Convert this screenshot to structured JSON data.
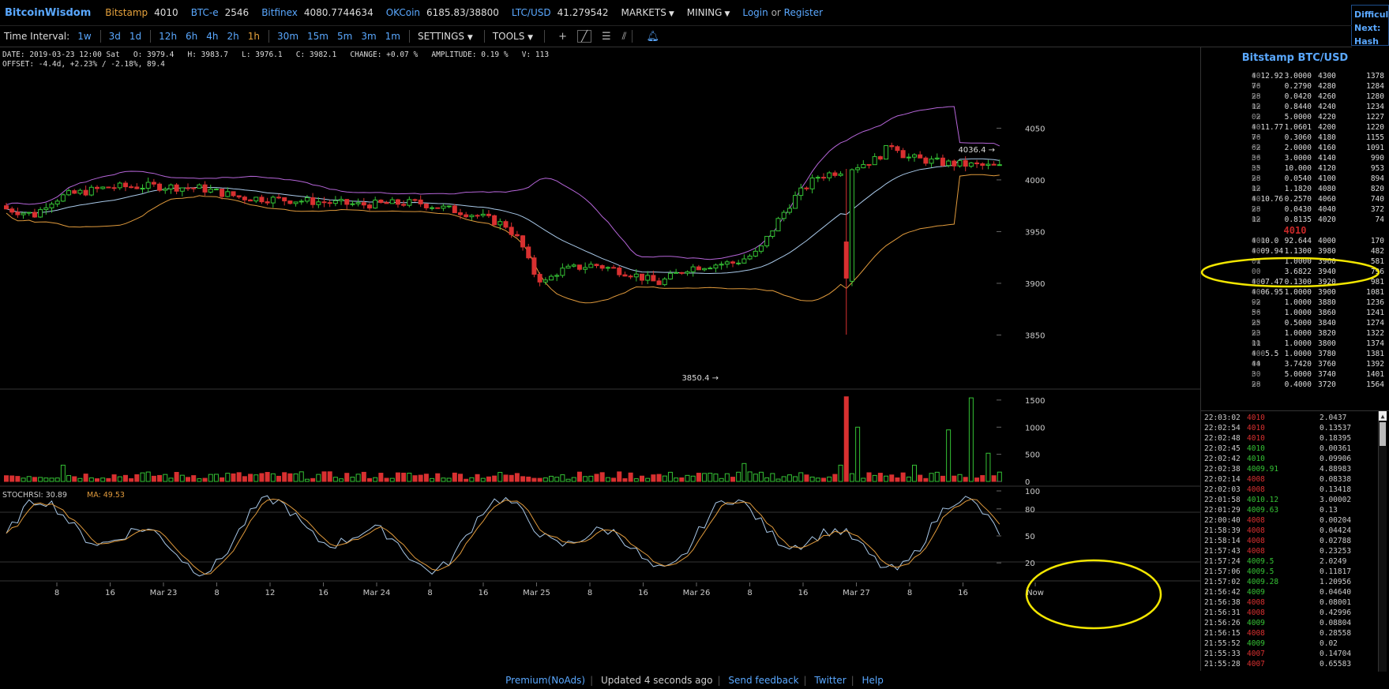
{
  "header": {
    "logo": "BitcoinWisdom",
    "tickers": [
      {
        "name": "Bitstamp",
        "price": "4010"
      },
      {
        "name": "BTC-e",
        "price": "2546"
      },
      {
        "name": "Bitfinex",
        "price": "4080.7744634"
      },
      {
        "name": "OKCoin",
        "price": "6185.83/38800"
      },
      {
        "name": "LTC/USD",
        "price": "41.279542"
      }
    ],
    "markets": "MARKETS",
    "mining": "MINING",
    "login": "Login",
    "or": "or",
    "register": "Register",
    "difficulty": {
      "line1": "Difficul",
      "line2": "Next:",
      "line3": "Hash Ra"
    }
  },
  "toolbar": {
    "time_interval_label": "Time Interval:",
    "intervals": [
      "1w",
      "3d",
      "1d",
      "12h",
      "6h",
      "4h",
      "2h",
      "1h",
      "30m",
      "15m",
      "5m",
      "3m",
      "1m"
    ],
    "selected_interval": "1h",
    "settings": "SETTINGS",
    "tools": "TOOLS"
  },
  "info": {
    "line1": "DATE: 2019-03-23 12:00 Sat   O: 3979.4   H: 3983.7   L: 3976.1   C: 3982.1   CHANGE: +0.07 %   AMPLITUDE: 0.19 %   V: 113",
    "line2": "OFFSET: -4.4d, +2.23% / -2.18%, 89.4"
  },
  "chart_data": {
    "type": "candlestick",
    "price_axis": {
      "ticks": [
        4050,
        4000,
        3950,
        3900,
        3850
      ],
      "range": [
        3800,
        4090
      ]
    },
    "annotations": {
      "high": "4036.4 →",
      "low": "3850.4 →"
    },
    "volume_axis": {
      "ticks": [
        1500,
        1000,
        500,
        0
      ],
      "range": [
        0,
        1600
      ]
    },
    "stochrsi": {
      "label": "STOCHRSI: 30.89",
      "ma_label": "MA: 49.53",
      "ticks": [
        100,
        80,
        50,
        20
      ],
      "range": [
        0,
        100
      ]
    },
    "time_axis": [
      "8",
      "16",
      "Mar 23",
      "8",
      "12",
      "16",
      "Mar 24",
      "8",
      "16",
      "Mar 25",
      "8",
      "16",
      "Mar 26",
      "8",
      "16",
      "Mar 27",
      "8",
      "16",
      "Now"
    ]
  },
  "orderbook": {
    "title": "Bitstamp BTC/USD",
    "last_price": "4010",
    "asks": [
      [
        "4012.92",
        "00",
        "3.0000",
        "4300",
        "1378"
      ],
      [
        "76",
        "00",
        "0.2790",
        "4280",
        "1284"
      ],
      [
        "28",
        "00",
        "0.0420",
        "4260",
        "1280"
      ],
      [
        "12",
        "00",
        "0.8440",
        "4240",
        "1234"
      ],
      [
        "02",
        "00",
        "5.0000",
        "4220",
        "1227"
      ],
      [
        "4011.77",
        "00",
        "1.0601",
        "4200",
        "1220"
      ],
      [
        "76",
        "00",
        "0.3060",
        "4180",
        "1155"
      ],
      [
        "62",
        "00",
        "2.0000",
        "4160",
        "1091"
      ],
      [
        "36",
        "00",
        "3.0000",
        "4140",
        "990"
      ],
      [
        "35",
        "00",
        "10.000",
        "4120",
        "953"
      ],
      [
        "28",
        "00",
        "0.0540",
        "4100",
        "894"
      ],
      [
        "12",
        "00",
        "1.1820",
        "4080",
        "820"
      ],
      [
        "4010.76",
        "00",
        "0.2570",
        "4060",
        "740"
      ],
      [
        "28",
        "00",
        "0.0430",
        "4040",
        "372"
      ],
      [
        "12",
        "00",
        "0.8135",
        "4020",
        "74"
      ]
    ],
    "bids": [
      [
        "4010.0",
        "000",
        "92.644",
        "4000",
        "170"
      ],
      [
        "4009.94",
        "00",
        "1.1300",
        "3980",
        "482"
      ],
      [
        "01",
        "00",
        "1.0000",
        "3960",
        "581"
      ],
      [
        "00",
        "00",
        "3.6822",
        "3940",
        "796"
      ],
      [
        "4007.47",
        "00",
        "0.1300",
        "3920",
        "981"
      ],
      [
        "4006.95",
        "00",
        "1.0000",
        "3900",
        "1081"
      ],
      [
        "92",
        "00",
        "1.0000",
        "3880",
        "1236"
      ],
      [
        "56",
        "00",
        "1.0000",
        "3860",
        "1241"
      ],
      [
        "25",
        "00",
        "0.5000",
        "3840",
        "1274"
      ],
      [
        "23",
        "00",
        "1.0000",
        "3820",
        "1322"
      ],
      [
        "11",
        "00",
        "1.0000",
        "3800",
        "1374"
      ],
      [
        "4005.5",
        "000",
        "1.0000",
        "3780",
        "1381"
      ],
      [
        "44",
        "00",
        "3.7420",
        "3760",
        "1392"
      ],
      [
        "30",
        "00",
        "5.0000",
        "3740",
        "1401"
      ],
      [
        "28",
        "00",
        "0.4000",
        "3720",
        "1564"
      ]
    ]
  },
  "trades": [
    {
      "time": "22:03:02",
      "price": "4010",
      "side": "sell",
      "amount": "2.0437"
    },
    {
      "time": "22:02:54",
      "price": "4010",
      "side": "sell",
      "amount": "0.13537"
    },
    {
      "time": "22:02:48",
      "price": "4010",
      "side": "sell",
      "amount": "0.18395"
    },
    {
      "time": "22:02:45",
      "price": "4010",
      "side": "buy",
      "amount": "0.00361"
    },
    {
      "time": "22:02:42",
      "price": "4010",
      "side": "buy",
      "amount": "0.09906"
    },
    {
      "time": "22:02:38",
      "price": "4009.91",
      "side": "buy",
      "amount": "4.88983"
    },
    {
      "time": "22:02:14",
      "price": "4008",
      "side": "sell",
      "amount": "0.08338"
    },
    {
      "time": "22:02:03",
      "price": "4008",
      "side": "sell",
      "amount": "0.13418"
    },
    {
      "time": "22:01:58",
      "price": "4010.12",
      "side": "buy",
      "amount": "3.00002"
    },
    {
      "time": "22:01:29",
      "price": "4009.63",
      "side": "buy",
      "amount": "0.13"
    },
    {
      "time": "22:00:40",
      "price": "4008",
      "side": "sell",
      "amount": "0.00204"
    },
    {
      "time": "21:58:39",
      "price": "4008",
      "side": "sell",
      "amount": "0.04424"
    },
    {
      "time": "21:58:14",
      "price": "4008",
      "side": "sell",
      "amount": "0.02788"
    },
    {
      "time": "21:57:43",
      "price": "4008",
      "side": "sell",
      "amount": "0.23253"
    },
    {
      "time": "21:57:24",
      "price": "4009.5",
      "side": "buy",
      "amount": "2.0249"
    },
    {
      "time": "21:57:06",
      "price": "4009.5",
      "side": "buy",
      "amount": "0.11817"
    },
    {
      "time": "21:57:02",
      "price": "4009.28",
      "side": "buy",
      "amount": "1.20956"
    },
    {
      "time": "21:56:42",
      "price": "4009",
      "side": "buy",
      "amount": "0.04640"
    },
    {
      "time": "21:56:38",
      "price": "4008",
      "side": "sell",
      "amount": "0.08001"
    },
    {
      "time": "21:56:31",
      "price": "4008",
      "side": "sell",
      "amount": "0.42996"
    },
    {
      "time": "21:56:26",
      "price": "4009",
      "side": "buy",
      "amount": "0.08804"
    },
    {
      "time": "21:56:15",
      "price": "4008",
      "side": "sell",
      "amount": "0.28558"
    },
    {
      "time": "21:55:52",
      "price": "4009",
      "side": "buy",
      "amount": "0.02"
    },
    {
      "time": "21:55:33",
      "price": "4007",
      "side": "sell",
      "amount": "0.14704"
    },
    {
      "time": "21:55:28",
      "price": "4007",
      "side": "sell",
      "amount": "0.65583"
    }
  ],
  "footer": {
    "premium": "Premium(NoAds)",
    "updated": "Updated 4 seconds ago",
    "feedback": "Send feedback",
    "twitter": "Twitter",
    "help": "Help"
  },
  "colors": {
    "up": "#35c235",
    "down": "#d83030",
    "accent": "#5aa8ff",
    "ticker": "#e6a23c",
    "boll_upper": "#b565d8",
    "boll_lower": "#e09a3c",
    "ma": "#a8c8e8",
    "highlight": "#f2e600"
  }
}
